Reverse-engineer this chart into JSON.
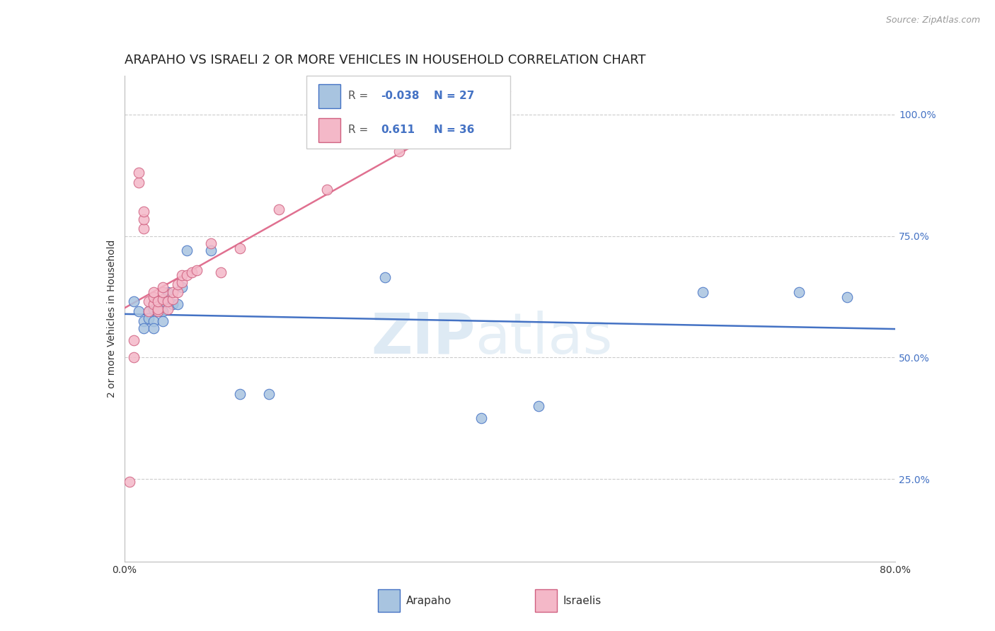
{
  "title": "ARAPAHO VS ISRAELI 2 OR MORE VEHICLES IN HOUSEHOLD CORRELATION CHART",
  "source_text": "Source: ZipAtlas.com",
  "ylabel": "2 or more Vehicles in Household",
  "xlim": [
    0.0,
    0.8
  ],
  "ylim": [
    0.08,
    1.08
  ],
  "xticks": [
    0.0,
    0.1,
    0.2,
    0.3,
    0.4,
    0.5,
    0.6,
    0.7,
    0.8
  ],
  "xticklabels": [
    "0.0%",
    "",
    "",
    "",
    "",
    "",
    "",
    "",
    "80.0%"
  ],
  "yticks_right": [
    0.25,
    0.5,
    0.75,
    1.0
  ],
  "ytick_right_labels": [
    "25.0%",
    "50.0%",
    "75.0%",
    "100.0%"
  ],
  "grid_color": "#cccccc",
  "background_color": "#ffffff",
  "arapaho_color": "#a8c4e0",
  "israeli_color": "#f4b8c8",
  "arapaho_line_color": "#4472c4",
  "israeli_line_color": "#e07090",
  "arapaho_r": -0.038,
  "arapaho_n": 27,
  "israeli_r": 0.611,
  "israeli_n": 36,
  "legend_label_arapaho": "Arapaho",
  "legend_label_israeli": "Israelis",
  "watermark_zip": "ZIP",
  "watermark_atlas": "atlas",
  "title_fontsize": 13,
  "axis_label_fontsize": 10,
  "tick_fontsize": 10,
  "arapaho_x": [
    0.01,
    0.015,
    0.02,
    0.02,
    0.025,
    0.025,
    0.03,
    0.03,
    0.03,
    0.035,
    0.04,
    0.04,
    0.04,
    0.045,
    0.05,
    0.055,
    0.06,
    0.065,
    0.09,
    0.12,
    0.15,
    0.27,
    0.37,
    0.43,
    0.6,
    0.7,
    0.75
  ],
  "arapaho_y": [
    0.615,
    0.595,
    0.575,
    0.56,
    0.595,
    0.58,
    0.6,
    0.575,
    0.56,
    0.595,
    0.615,
    0.595,
    0.575,
    0.635,
    0.61,
    0.61,
    0.645,
    0.72,
    0.72,
    0.425,
    0.425,
    0.665,
    0.375,
    0.4,
    0.635,
    0.635,
    0.625
  ],
  "israeli_x": [
    0.005,
    0.01,
    0.01,
    0.015,
    0.015,
    0.02,
    0.02,
    0.02,
    0.025,
    0.025,
    0.03,
    0.03,
    0.03,
    0.035,
    0.035,
    0.035,
    0.04,
    0.04,
    0.04,
    0.045,
    0.045,
    0.05,
    0.05,
    0.055,
    0.055,
    0.06,
    0.06,
    0.065,
    0.07,
    0.075,
    0.09,
    0.1,
    0.12,
    0.16,
    0.21,
    0.285
  ],
  "israeli_y": [
    0.245,
    0.5,
    0.535,
    0.86,
    0.88,
    0.765,
    0.785,
    0.8,
    0.595,
    0.615,
    0.61,
    0.625,
    0.635,
    0.595,
    0.6,
    0.615,
    0.62,
    0.635,
    0.645,
    0.6,
    0.615,
    0.62,
    0.635,
    0.635,
    0.65,
    0.655,
    0.67,
    0.67,
    0.675,
    0.68,
    0.735,
    0.675,
    0.725,
    0.805,
    0.845,
    0.925
  ]
}
